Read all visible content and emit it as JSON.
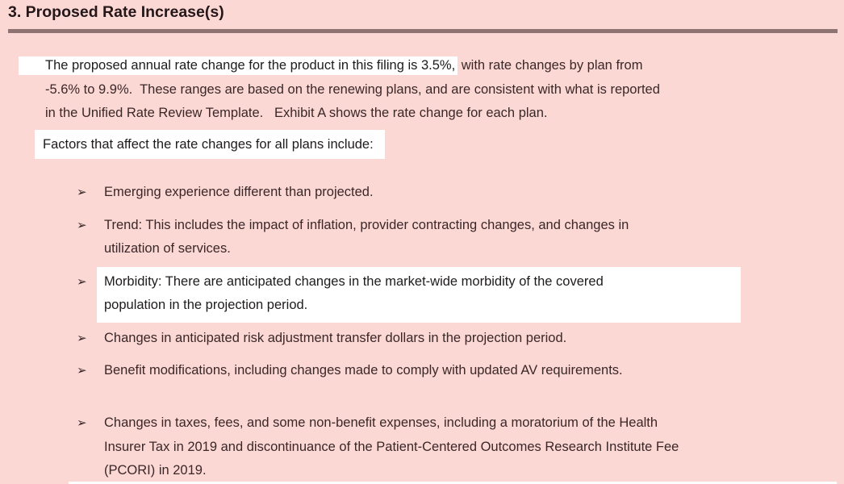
{
  "colors": {
    "page_background": "#fcd8d5",
    "highlight_background": "#ffffff",
    "body_text": "#3a2728",
    "heading_text": "#241719",
    "rule": "#8d7472"
  },
  "heading": {
    "text": "3. Proposed Rate Increase(s)"
  },
  "intro": {
    "line1_highlighted": "The proposed annual rate change for the product in this filing is 3.5%,",
    "line1_rest": " with rate changes by plan from",
    "line2": "-5.6% to 9.9%.  These ranges are based on the renewing plans, and are consistent with what is reported",
    "line3": "in the Unified Rate Review Template.   Exhibit A shows the rate change for each plan."
  },
  "factors_label": "Factors that affect the rate changes for all plans include:",
  "bullet_marker": "➢",
  "bullets": [
    {
      "highlighted": false,
      "extra_gap": false,
      "lines": [
        "Emerging experience different than projected."
      ]
    },
    {
      "highlighted": false,
      "extra_gap": false,
      "lines": [
        "Trend: This includes the impact of inflation, provider contracting changes, and changes in",
        "utilization of services."
      ]
    },
    {
      "highlighted": true,
      "extra_gap": false,
      "lines": [
        "Morbidity: There are anticipated changes in the market-wide morbidity of the covered",
        "population in the projection period."
      ]
    },
    {
      "highlighted": false,
      "extra_gap": false,
      "lines": [
        "Changes in anticipated risk adjustment transfer dollars in the projection period."
      ]
    },
    {
      "highlighted": false,
      "extra_gap": true,
      "lines": [
        "Benefit modifications, including changes made to comply with updated AV requirements."
      ]
    },
    {
      "highlighted": false,
      "extra_gap": false,
      "lines": [
        "Changes in taxes, fees, and some non-benefit expenses, including a moratorium of the Health",
        "Insurer Tax in 2019 and discontinuance of the Patient-Centered Outcomes Research Institute Fee",
        "(PCORI) in 2019."
      ]
    }
  ]
}
